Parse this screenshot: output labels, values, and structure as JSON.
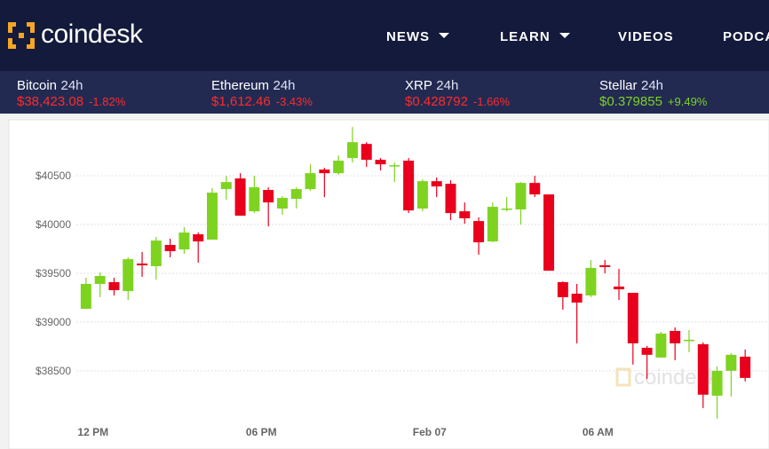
{
  "header": {
    "logo": "coindesk",
    "nav": [
      "NEWS",
      "LEARN",
      "VIDEOS",
      "PODCA"
    ]
  },
  "tickers": [
    {
      "name": "Bitcoin",
      "period": "24h",
      "price": "$38,423.08",
      "change": "-1.82%",
      "direction": "down"
    },
    {
      "name": "Ethereum",
      "period": "24h",
      "price": "$1,612.46",
      "change": "-3.43%",
      "direction": "down"
    },
    {
      "name": "XRP",
      "period": "24h",
      "price": "$0.428792",
      "change": "-1.66%",
      "direction": "down"
    },
    {
      "name": "Stellar",
      "period": "24h",
      "price": "$0.379855",
      "change": "+9.49%",
      "direction": "up"
    }
  ],
  "chart_data": {
    "type": "candlestick",
    "watermark": "coindesk",
    "up_color": "#7ed321",
    "down_color": "#e8001c",
    "grid": true,
    "open": [
      39136,
      39391,
      39409,
      39318,
      39600,
      39573,
      39791,
      39745,
      39900,
      39845,
      40364,
      40473,
      40136,
      40355,
      40164,
      40264,
      40364,
      40564,
      40527,
      40682,
      40827,
      40664,
      40600,
      40655,
      40164,
      40445,
      40418,
      40136,
      40036,
      39827,
      40155,
      40155,
      40427,
      40309,
      39409,
      39291,
      39273,
      39582,
      39364,
      39300,
      38736,
      38636,
      38909,
      38809,
      38773,
      38245,
      38500,
      38645
    ],
    "high": [
      39455,
      39509,
      39455,
      39664,
      39718,
      39873,
      39855,
      39973,
      39918,
      40373,
      40500,
      40527,
      40500,
      40382,
      40291,
      40382,
      40618,
      40582,
      40709,
      41000,
      40845,
      40682,
      40636,
      40682,
      40464,
      40482,
      40455,
      40227,
      40073,
      40227,
      40282,
      40436,
      40500,
      40309,
      39418,
      39391,
      39636,
      39636,
      39545,
      39300,
      38755,
      38900,
      38945,
      38918,
      38791,
      38545,
      38682,
      38718
    ],
    "low": [
      39136,
      39255,
      39273,
      39227,
      39464,
      39436,
      39664,
      39700,
      39609,
      39845,
      40255,
      40091,
      40118,
      39982,
      40100,
      40164,
      40345,
      40282,
      40509,
      40636,
      40591,
      40555,
      40436,
      40118,
      40136,
      40282,
      40045,
      40009,
      39691,
      39818,
      40136,
      40000,
      40282,
      39527,
      39127,
      38782,
      39255,
      39500,
      39227,
      38564,
      38418,
      38636,
      38609,
      38691,
      38118,
      38009,
      38236,
      38391
    ],
    "close": [
      39391,
      39473,
      39327,
      39645,
      39582,
      39836,
      39727,
      39918,
      39827,
      40327,
      40436,
      40091,
      40382,
      40227,
      40273,
      40364,
      40527,
      40527,
      40655,
      40845,
      40664,
      40618,
      40609,
      40145,
      40445,
      40391,
      40118,
      40064,
      39818,
      40182,
      40164,
      40427,
      40309,
      39527,
      39255,
      39200,
      39555,
      39564,
      39336,
      38782,
      38664,
      38882,
      38782,
      38818,
      38255,
      38500,
      38664,
      38427
    ],
    "ylim": [
      37980,
      41120
    ],
    "yticks": [
      {
        "value": 38500,
        "label": "$38500"
      },
      {
        "value": 39000,
        "label": "$39000"
      },
      {
        "value": 39500,
        "label": "$39500"
      },
      {
        "value": 40000,
        "label": "$40000"
      },
      {
        "value": 40500,
        "label": "$40500"
      }
    ],
    "xlim": [
      -5.5,
      48.7
    ],
    "xticks": [
      {
        "value": 0.5,
        "label": "12 PM"
      },
      {
        "value": 12.5,
        "label": "06 PM"
      },
      {
        "value": 24.5,
        "label": "Feb 07"
      },
      {
        "value": 36.5,
        "label": "06 AM"
      }
    ]
  }
}
